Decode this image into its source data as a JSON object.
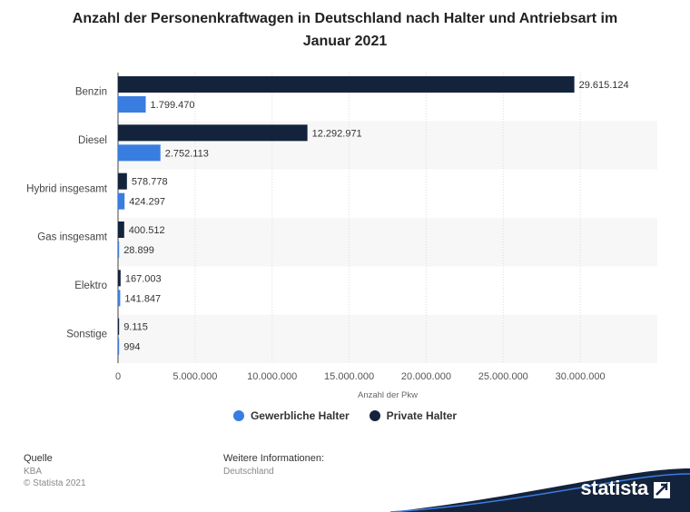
{
  "header": {
    "title_line1": "Anzahl der Personenkraftwagen in Deutschland nach Halter und Antriebsart im",
    "title_line2": "Januar 2021"
  },
  "colors": {
    "gewerblich": "#3a7de0",
    "privat": "#14233c",
    "stripe": "#f7f7f7",
    "grid": "#dddddd"
  },
  "chart_data": {
    "type": "bar",
    "orientation": "horizontal",
    "title": "Anzahl der Personenkraftwagen in Deutschland nach Halter und Antriebsart im Januar 2021",
    "categories": [
      "Benzin",
      "Diesel",
      "Hybrid insgesamt",
      "Gas insgesamt",
      "Elektro",
      "Sonstige"
    ],
    "series": [
      {
        "name": "Private Halter",
        "values": [
          29615124,
          12292971,
          578778,
          400512,
          167003,
          9115
        ],
        "labels": [
          "29.615.124",
          "12.292.971",
          "578.778",
          "400.512",
          "167.003",
          "9.115"
        ]
      },
      {
        "name": "Gewerbliche Halter",
        "values": [
          1799470,
          2752113,
          424297,
          28899,
          141847,
          994
        ],
        "labels": [
          "1.799.470",
          "2.752.113",
          "424.297",
          "28.899",
          "141.847",
          "994"
        ]
      }
    ],
    "xlabel": "Anzahl der Pkw",
    "ylabel": "",
    "xlim": [
      0,
      35000000
    ],
    "ticks": [
      0,
      5000000,
      10000000,
      15000000,
      20000000,
      25000000,
      30000000
    ],
    "tick_labels": [
      "0",
      "5.000.000",
      "10.000.000",
      "15.000.000",
      "20.000.000",
      "25.000.000",
      "30.000.000"
    ],
    "grid": true,
    "legend_position": "bottom"
  },
  "legend": {
    "gewerblich_label": "Gewerbliche Halter",
    "privat_label": "Private Halter"
  },
  "footer": {
    "source_heading": "Quelle",
    "source_name": "KBA",
    "copyright": "© Statista 2021",
    "info_heading": "Weitere Informationen:",
    "info_text": "Deutschland"
  },
  "brand": {
    "name": "statista"
  }
}
